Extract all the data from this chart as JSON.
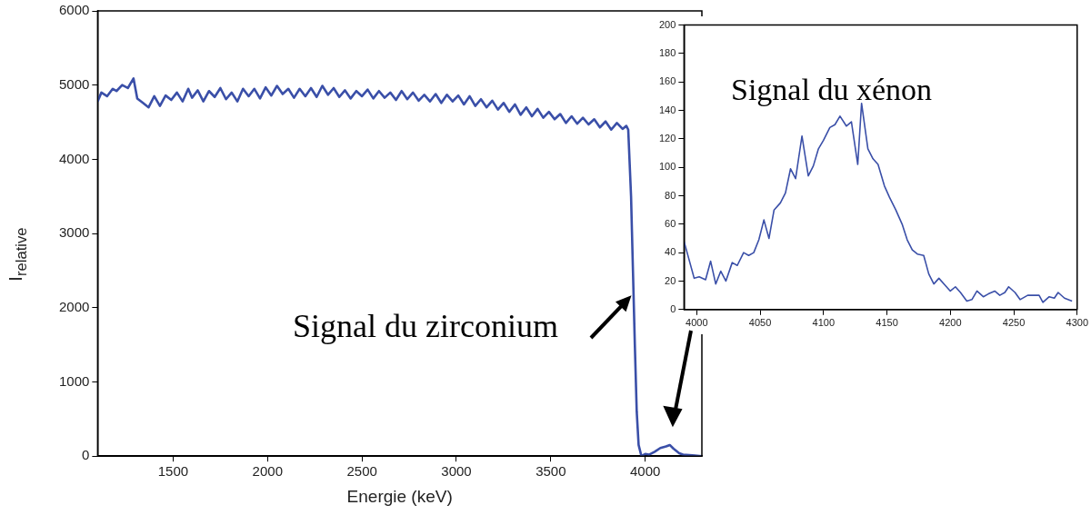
{
  "chart_data": [
    {
      "type": "line",
      "xlabel": "Energie (keV)",
      "ylabel": "I$_{relative}$",
      "xlim": [
        1100,
        4300
      ],
      "ylim": [
        0,
        6000
      ],
      "xticks": [
        1500,
        2000,
        2500,
        3000,
        3500,
        4000
      ],
      "yticks": [
        0,
        1000,
        2000,
        3000,
        4000,
        5000,
        6000
      ],
      "annotations": [
        {
          "text": "Signal du zirconium",
          "x": 3940,
          "y": 2200
        }
      ],
      "x": [
        1100,
        1120,
        1150,
        1180,
        1200,
        1230,
        1260,
        1290,
        1310,
        1340,
        1370,
        1400,
        1430,
        1460,
        1490,
        1520,
        1550,
        1580,
        1600,
        1630,
        1660,
        1690,
        1720,
        1750,
        1780,
        1810,
        1840,
        1870,
        1900,
        1930,
        1960,
        1990,
        2020,
        2050,
        2080,
        2110,
        2140,
        2170,
        2200,
        2230,
        2260,
        2290,
        2320,
        2350,
        2380,
        2410,
        2440,
        2470,
        2500,
        2530,
        2560,
        2590,
        2620,
        2650,
        2680,
        2710,
        2740,
        2770,
        2800,
        2830,
        2860,
        2890,
        2920,
        2950,
        2980,
        3010,
        3040,
        3070,
        3100,
        3130,
        3160,
        3190,
        3220,
        3250,
        3280,
        3310,
        3340,
        3370,
        3400,
        3430,
        3460,
        3490,
        3520,
        3550,
        3580,
        3610,
        3640,
        3670,
        3700,
        3730,
        3760,
        3790,
        3820,
        3850,
        3880,
        3900,
        3910,
        3925,
        3935,
        3945,
        3955,
        3965,
        3980,
        4000,
        4020,
        4050,
        4080,
        4110,
        4130,
        4150,
        4180,
        4200,
        4250,
        4300
      ],
      "series": [
        {
          "color": "#3a4fa8",
          "values": [
            4780,
            4900,
            4850,
            4950,
            4920,
            5000,
            4960,
            5090,
            4820,
            4760,
            4700,
            4850,
            4720,
            4860,
            4800,
            4900,
            4780,
            4950,
            4830,
            4930,
            4780,
            4920,
            4840,
            4960,
            4810,
            4900,
            4780,
            4950,
            4850,
            4950,
            4820,
            4970,
            4860,
            4990,
            4880,
            4950,
            4830,
            4950,
            4850,
            4960,
            4840,
            4990,
            4870,
            4960,
            4840,
            4930,
            4820,
            4920,
            4850,
            4940,
            4820,
            4920,
            4830,
            4900,
            4800,
            4920,
            4810,
            4900,
            4790,
            4870,
            4780,
            4880,
            4760,
            4870,
            4780,
            4860,
            4740,
            4850,
            4720,
            4810,
            4700,
            4790,
            4670,
            4760,
            4640,
            4740,
            4600,
            4700,
            4580,
            4680,
            4560,
            4640,
            4540,
            4610,
            4490,
            4580,
            4480,
            4560,
            4470,
            4540,
            4430,
            4510,
            4400,
            4490,
            4410,
            4450,
            4400,
            3500,
            2500,
            1500,
            600,
            150,
            0,
            30,
            20,
            60,
            110,
            130,
            150,
            100,
            40,
            20,
            10,
            0
          ]
        }
      ]
    },
    {
      "type": "line",
      "xlim": [
        3990,
        4300
      ],
      "ylim": [
        0,
        200
      ],
      "xticks": [
        4000,
        4050,
        4100,
        4150,
        4200,
        4250,
        4300
      ],
      "yticks": [
        0,
        20,
        40,
        60,
        80,
        100,
        120,
        140,
        160,
        180,
        200
      ],
      "annotations": [
        "Signal du xénon"
      ],
      "x": [
        3990,
        3998,
        4002,
        4007,
        4011,
        4015,
        4019,
        4023,
        4028,
        4032,
        4037,
        4041,
        4045,
        4049,
        4053,
        4057,
        4061,
        4066,
        4070,
        4074,
        4078,
        4083,
        4088,
        4092,
        4096,
        4100,
        4105,
        4109,
        4113,
        4118,
        4122,
        4127,
        4130,
        4135,
        4139,
        4143,
        4148,
        4152,
        4157,
        4162,
        4166,
        4170,
        4174,
        4179,
        4183,
        4187,
        4191,
        4196,
        4200,
        4204,
        4208,
        4213,
        4217,
        4221,
        4226,
        4230,
        4235,
        4239,
        4243,
        4246,
        4251,
        4255,
        4261,
        4266,
        4270,
        4273,
        4278,
        4282,
        4285,
        4290,
        4296
      ],
      "series": [
        {
          "color": "#3a4fa8",
          "values": [
            48,
            22,
            23,
            21,
            34,
            18,
            27,
            20,
            33,
            31,
            40,
            38,
            40,
            49,
            63,
            50,
            70,
            75,
            82,
            99,
            92,
            122,
            94,
            101,
            113,
            119,
            128,
            130,
            136,
            129,
            132,
            102,
            145,
            113,
            106,
            102,
            87,
            79,
            70,
            60,
            49,
            42,
            39,
            38,
            25,
            18,
            22,
            17,
            13,
            16,
            12,
            6,
            7,
            13,
            9,
            11,
            13,
            10,
            12,
            16,
            12,
            7,
            10,
            10,
            10,
            5,
            9,
            8,
            12,
            8,
            6
          ]
        }
      ]
    }
  ]
}
